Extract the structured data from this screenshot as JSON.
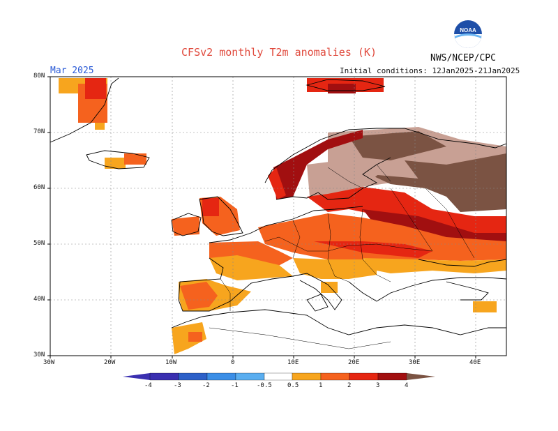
{
  "header": {
    "title": "CFSv2 monthly T2m anomalies (K)",
    "agency": "NWS/NCEP/CPC",
    "month": "Mar 2025",
    "initial_conditions": "Initial conditions: 12Jan2025-21Jan2025",
    "logo_text": "NOAA"
  },
  "axes": {
    "lat_labels": [
      "80N",
      "70N",
      "60N",
      "50N",
      "40N",
      "30N"
    ],
    "lon_labels": [
      "30W",
      "20W",
      "10W",
      "0",
      "10E",
      "20E",
      "30E",
      "40E"
    ]
  },
  "colorbar": {
    "labels": [
      "-4",
      "-3",
      "-2",
      "-1",
      "-0.5",
      "0.5",
      "1",
      "2",
      "3",
      "4"
    ],
    "colors": [
      "#3a2fb0",
      "#2d60c8",
      "#3b8ee6",
      "#5aaef0",
      "#9fd4f8",
      "#ffffff",
      "#f7a51e",
      "#f5621e",
      "#e52612",
      "#a10f10",
      "#c8a094",
      "#7b5343"
    ]
  },
  "palette": {
    "0.5-1": "#f7a51e",
    "1-2": "#f5621e",
    "2-3": "#e52612",
    "3-4": "#a10f10",
    "4-5": "#c8a094",
    "5+": "#7b5343"
  }
}
